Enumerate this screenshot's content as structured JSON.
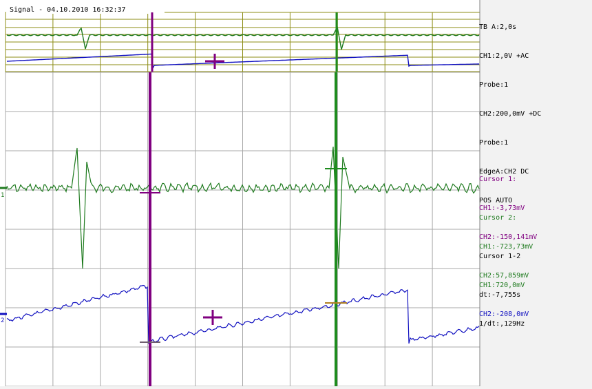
{
  "window": {
    "title": "Signal - 04.10.2010 16:32:37"
  },
  "settings": [
    "TB A:2,0s",
    "CH1:2,0V +AC",
    "Probe:1",
    "CH2:200,0mV +DC",
    "Probe:1",
    "EdgeA:CH2 DC",
    "POS AUTO"
  ],
  "cursor1": {
    "title": "Cursor 1:",
    "ch1": "CH1:-3,73mV",
    "ch2": "CH2:-150,141mV"
  },
  "cursor2": {
    "title": "Cursor 2:",
    "ch1": "CH1:-723,73mV",
    "ch2": "CH2:57,859mV"
  },
  "cursor_delta": {
    "title": "Cursor 1-2",
    "ch1": "CH1:720,0mV",
    "ch2": "CH2:-208,0mV"
  },
  "timing": {
    "dt": "dt:-7,755s",
    "inv_dt": "1/dt:,129Hz"
  },
  "channel_markers": {
    "ch1": "1",
    "ch2": "2"
  },
  "colors": {
    "background": "#ffffff",
    "panel": "#f0f0f0",
    "grid": "#a0a0a0",
    "ch1": "#1e7a1e",
    "ch2": "#1010c0",
    "cursor1": "#800080",
    "cursor2": "#1e8c1e",
    "overview_grid": "#8c8c14"
  }
}
